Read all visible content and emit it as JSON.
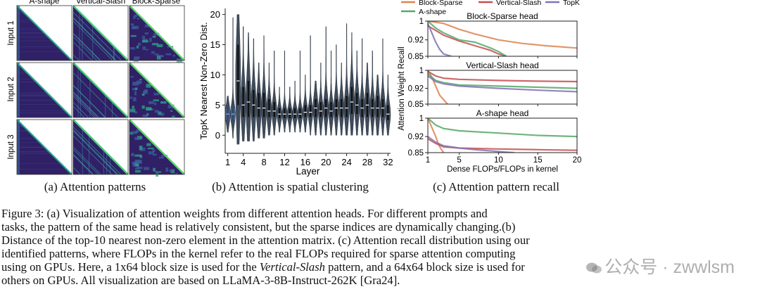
{
  "panel_a": {
    "col_labels": [
      "A-shape",
      "Vertical-Slash",
      "Block-Sparse"
    ],
    "row_labels": [
      "Input 1",
      "Input 2",
      "Input 3"
    ],
    "caption": "(a) Attention patterns"
  },
  "panel_b": {
    "caption": "(b) Attention is spatial clustering"
  },
  "panel_c": {
    "caption": "(c) Attention pattern recall"
  },
  "figure_caption": {
    "lines": [
      "Figure 3: (a) Visualization of attention weights from different attention heads. For different prompts and",
      "tasks, the pattern of the same head is relatively consistent, but the sparse indices are dynamically changing.(b)",
      "Distance of the top-10 nearest non-zero element in the attention matrix. (c) Attention recall distribution using our",
      "identified patterns, where FLOPs in the kernel refer to the real FLOPs required for sparse attention computing"
    ],
    "line5_a": "using on GPUs. Here, a 1x64 block size is used for the ",
    "line5_em": "Vertical-Slash",
    "line5_b": " pattern, and a 64x64 block size is used for",
    "line6": "others on GPUs. All visualization are based on LLaMA-3-8B-Instruct-262K [Gra24]."
  },
  "watermark": "公众号 · zwwlsm",
  "colors": {
    "blue": "#4c72b0",
    "orange": "#dd8452",
    "green": "#55a868",
    "red": "#c44e52",
    "purple": "#8172b3",
    "violin": "#3f4b5a"
  },
  "chart_data": [
    {
      "type": "violin",
      "xlabel": "Layer",
      "ylabel": "TopK Nearest Non-Zero Dist.",
      "xlim": [
        0.5,
        32.5
      ],
      "ylim": [
        -3,
        21
      ],
      "xticks": [
        1,
        4,
        8,
        12,
        16,
        20,
        24,
        28,
        32
      ],
      "yticks": [
        0,
        5,
        10,
        15,
        20
      ],
      "layers": [
        {
          "layer": 1,
          "median": 3.5,
          "q1": 2.5,
          "q3": 4.5,
          "min": 0.5,
          "max": 6.5
        },
        {
          "layer": 2,
          "median": 3.5,
          "q1": 2.5,
          "q3": 4.5,
          "min": -0.5,
          "max": 19.5
        },
        {
          "layer": 3,
          "median": 9.0,
          "q1": 5.0,
          "q3": 15.0,
          "min": -1.5,
          "max": 20.0
        },
        {
          "layer": 4,
          "median": 5.0,
          "q1": 3.0,
          "q3": 8.0,
          "min": -1.0,
          "max": 18.0
        },
        {
          "layer": 5,
          "median": 5.5,
          "q1": 3.0,
          "q3": 9.0,
          "min": -1.0,
          "max": 17.0
        },
        {
          "layer": 6,
          "median": 5.0,
          "q1": 3.0,
          "q3": 7.5,
          "min": -1.0,
          "max": 16.0
        },
        {
          "layer": 7,
          "median": 4.5,
          "q1": 3.0,
          "q3": 7.0,
          "min": -0.5,
          "max": 12.0
        },
        {
          "layer": 8,
          "median": 4.5,
          "q1": 3.0,
          "q3": 7.0,
          "min": -0.5,
          "max": 16.5
        },
        {
          "layer": 9,
          "median": 4.0,
          "q1": 3.0,
          "q3": 6.0,
          "min": 0.0,
          "max": 12.0
        },
        {
          "layer": 10,
          "median": 4.0,
          "q1": 3.0,
          "q3": 5.5,
          "min": 0.0,
          "max": 14.0
        },
        {
          "layer": 11,
          "median": 3.5,
          "q1": 2.8,
          "q3": 4.5,
          "min": 0.5,
          "max": 8.0
        },
        {
          "layer": 12,
          "median": 3.5,
          "q1": 2.8,
          "q3": 4.5,
          "min": 0.5,
          "max": 14.0
        },
        {
          "layer": 13,
          "median": 3.5,
          "q1": 2.8,
          "q3": 4.5,
          "min": 0.5,
          "max": 8.0
        },
        {
          "layer": 14,
          "median": 3.5,
          "q1": 2.8,
          "q3": 4.5,
          "min": 0.5,
          "max": 9.0
        },
        {
          "layer": 15,
          "median": 3.5,
          "q1": 2.8,
          "q3": 4.5,
          "min": 0.5,
          "max": 14.0
        },
        {
          "layer": 16,
          "median": 3.8,
          "q1": 3.0,
          "q3": 5.0,
          "min": 0.5,
          "max": 10.0
        },
        {
          "layer": 17,
          "median": 3.8,
          "q1": 3.0,
          "q3": 5.0,
          "min": 0.0,
          "max": 16.5
        },
        {
          "layer": 18,
          "median": 4.5,
          "q1": 3.0,
          "q3": 6.0,
          "min": 0.0,
          "max": 9.0
        },
        {
          "layer": 19,
          "median": 4.0,
          "q1": 3.0,
          "q3": 5.5,
          "min": 0.0,
          "max": 12.0
        },
        {
          "layer": 20,
          "median": 4.5,
          "q1": 3.0,
          "q3": 6.0,
          "min": 0.0,
          "max": 18.0
        },
        {
          "layer": 21,
          "median": 4.0,
          "q1": 3.0,
          "q3": 5.5,
          "min": 0.0,
          "max": 14.0
        },
        {
          "layer": 22,
          "median": 4.5,
          "q1": 3.0,
          "q3": 6.0,
          "min": 0.0,
          "max": 15.0
        },
        {
          "layer": 23,
          "median": 4.5,
          "q1": 3.0,
          "q3": 6.0,
          "min": 0.0,
          "max": 12.0
        },
        {
          "layer": 24,
          "median": 4.5,
          "q1": 3.0,
          "q3": 6.5,
          "min": 0.0,
          "max": 18.5
        },
        {
          "layer": 25,
          "median": 5.5,
          "q1": 3.5,
          "q3": 8.0,
          "min": 0.0,
          "max": 17.0
        },
        {
          "layer": 26,
          "median": 5.0,
          "q1": 3.5,
          "q3": 7.0,
          "min": 0.0,
          "max": 14.0
        },
        {
          "layer": 27,
          "median": 4.5,
          "q1": 3.0,
          "q3": 6.0,
          "min": 0.0,
          "max": 16.0
        },
        {
          "layer": 28,
          "median": 5.0,
          "q1": 3.0,
          "q3": 7.0,
          "min": 0.0,
          "max": 12.0
        },
        {
          "layer": 29,
          "median": 4.5,
          "q1": 3.0,
          "q3": 6.0,
          "min": 0.0,
          "max": 14.0
        },
        {
          "layer": 30,
          "median": 4.5,
          "q1": 3.0,
          "q3": 6.5,
          "min": 0.0,
          "max": 10.0
        },
        {
          "layer": 31,
          "median": 4.5,
          "q1": 3.0,
          "q3": 6.0,
          "min": 0.0,
          "max": 16.0
        },
        {
          "layer": 32,
          "median": 3.5,
          "q1": 2.5,
          "q3": 5.0,
          "min": 0.0,
          "max": 10.0
        }
      ]
    },
    {
      "type": "line",
      "xlabel": "Dense FLOPs/FLOPs in kernel",
      "ylabel": "Attention Weight Recall",
      "xlim": [
        1,
        20
      ],
      "xticks": [
        1,
        5,
        10,
        15,
        20
      ],
      "legend": {
        "placement": "top",
        "entries": [
          {
            "name": "Block-Sparse",
            "color": "#dd8452"
          },
          {
            "name": "Vertical-Slash",
            "color": "#c44e52"
          },
          {
            "name": "TopK",
            "color": "#8172b3"
          },
          {
            "name": "A-shape",
            "color": "#55a868"
          }
        ]
      },
      "panels": [
        {
          "title": "Block-Sparse head",
          "ylim": [
            0.85,
            1.0
          ],
          "yticks": [
            0.85,
            0.92,
            1
          ],
          "series": [
            {
              "name": "Block-Sparse",
              "color": "#dd8452",
              "x": [
                1,
                2,
                3,
                5,
                7,
                10,
                13,
                16,
                20
              ],
              "y": [
                1.0,
                0.995,
                0.99,
                0.965,
                0.945,
                0.92,
                0.905,
                0.895,
                0.885
              ]
            },
            {
              "name": "Vertical-Slash",
              "color": "#c44e52",
              "x": [
                1,
                2,
                3,
                5,
                7,
                9,
                10,
                11
              ],
              "y": [
                0.98,
                0.96,
                0.94,
                0.915,
                0.895,
                0.875,
                0.86,
                0.85
              ]
            },
            {
              "name": "A-shape",
              "color": "#55a868",
              "x": [
                1,
                2,
                3,
                5,
                7,
                9,
                10,
                11
              ],
              "y": [
                1.0,
                0.97,
                0.95,
                0.92,
                0.91,
                0.885,
                0.87,
                0.85
              ]
            },
            {
              "name": "TopK",
              "color": "#8172b3",
              "x": [
                1,
                1.5,
                2,
                2.5,
                3,
                4
              ],
              "y": [
                0.99,
                0.95,
                0.91,
                0.88,
                0.86,
                0.85
              ]
            }
          ]
        },
        {
          "title": "Vertical-Slash head",
          "ylim": [
            0.85,
            1.0
          ],
          "yticks": [
            0.85,
            0.92,
            1
          ],
          "series": [
            {
              "name": "Block-Sparse",
              "color": "#dd8452",
              "x": [
                1,
                1.5,
                2,
                2.5,
                3,
                3.5
              ],
              "y": [
                1.0,
                0.97,
                0.93,
                0.89,
                0.87,
                0.85
              ]
            },
            {
              "name": "Vertical-Slash",
              "color": "#c44e52",
              "x": [
                1,
                2,
                3,
                5,
                10,
                15,
                20
              ],
              "y": [
                0.995,
                0.975,
                0.965,
                0.96,
                0.955,
                0.952,
                0.95
              ]
            },
            {
              "name": "A-shape",
              "color": "#55a868",
              "x": [
                1,
                2,
                3,
                5,
                10,
                15,
                20
              ],
              "y": [
                0.985,
                0.955,
                0.945,
                0.935,
                0.93,
                0.925,
                0.92
              ]
            },
            {
              "name": "TopK",
              "color": "#8172b3",
              "x": [
                1,
                2,
                3,
                5,
                10,
                15,
                20
              ],
              "y": [
                0.975,
                0.95,
                0.94,
                0.93,
                0.92,
                0.912,
                0.905
              ]
            }
          ]
        },
        {
          "title": "A-shape head",
          "ylim": [
            0.85,
            1.0
          ],
          "yticks": [
            0.85,
            0.92,
            1
          ],
          "series": [
            {
              "name": "Block-Sparse",
              "color": "#dd8452",
              "x": [
                1,
                1.5,
                2,
                2.3,
                2.6,
                3
              ],
              "y": [
                1.0,
                0.96,
                0.92,
                0.89,
                0.87,
                0.85
              ]
            },
            {
              "name": "Vertical-Slash",
              "color": "#c44e52",
              "x": [
                1,
                2,
                3,
                5,
                10,
                15,
                20
              ],
              "y": [
                0.91,
                0.89,
                0.875,
                0.87,
                0.866,
                0.863,
                0.86
              ]
            },
            {
              "name": "A-shape",
              "color": "#55a868",
              "x": [
                1,
                2,
                3,
                5,
                10,
                15,
                20
              ],
              "y": [
                1.0,
                0.97,
                0.955,
                0.945,
                0.935,
                0.925,
                0.92
              ]
            },
            {
              "name": "TopK",
              "color": "#8172b3",
              "x": [
                1,
                2,
                3,
                5,
                7,
                10,
                11,
                12
              ],
              "y": [
                0.92,
                0.895,
                0.88,
                0.87,
                0.863,
                0.855,
                0.852,
                0.85
              ]
            }
          ]
        }
      ]
    }
  ]
}
